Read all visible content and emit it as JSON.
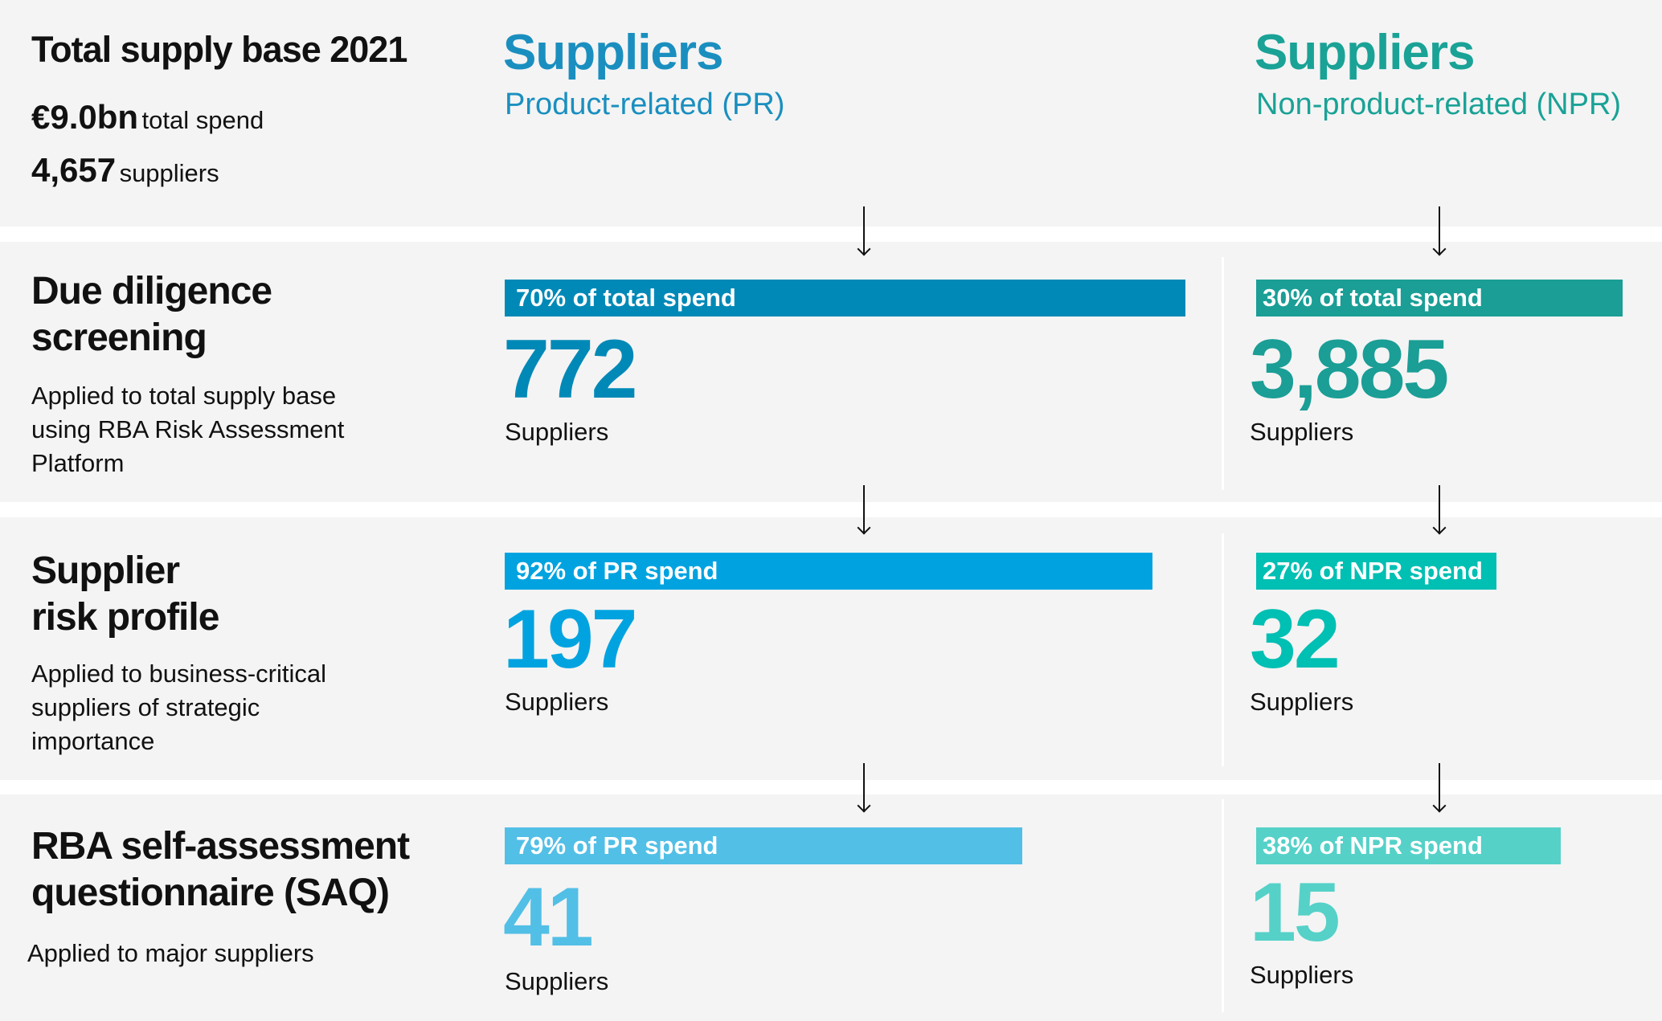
{
  "summary": {
    "title": "Total supply base 2021",
    "spend_value": "€9.0bn",
    "spend_label": "total spend",
    "suppliers_value": "4,657",
    "suppliers_label": "suppliers"
  },
  "columns": [
    {
      "title": "Suppliers",
      "subtitle": "Product-related (PR)",
      "color": "#1a8fbf"
    },
    {
      "title": "Suppliers",
      "subtitle": "Non-product-related (NPR)",
      "color": "#1aa296"
    }
  ],
  "stages": [
    {
      "title_line1": "Due diligence",
      "title_line2": "screening",
      "desc": [
        "Applied to total supply base",
        "using RBA Risk Assessment",
        "Platform"
      ],
      "pr": {
        "bar": "70% of total spend",
        "value": "772",
        "label": "Suppliers",
        "color": "#0089b7"
      },
      "npr": {
        "bar": "30% of total spend",
        "value": "3,885",
        "label": "Suppliers",
        "color": "#1a9e96"
      }
    },
    {
      "title_line1": "Supplier",
      "title_line2": "risk profile",
      "desc": [
        "Applied to business-critical",
        "suppliers of strategic",
        "importance"
      ],
      "pr": {
        "bar": "92% of PR spend",
        "value": "197",
        "label": "Suppliers",
        "color": "#00a3e0"
      },
      "npr": {
        "bar": "27% of NPR spend",
        "value": "32",
        "label": "Suppliers",
        "color": "#00bfb3"
      }
    },
    {
      "title_line1": "RBA self-assessment",
      "title_line2": "questionnaire (SAQ)",
      "desc": [
        "Applied to major suppliers"
      ],
      "pr": {
        "bar": "79% of PR spend",
        "value": "41",
        "label": "Suppliers",
        "color": "#52bfe6"
      },
      "npr": {
        "bar": "38% of NPR spend",
        "value": "15",
        "label": "Suppliers",
        "color": "#55d1c8"
      }
    }
  ]
}
